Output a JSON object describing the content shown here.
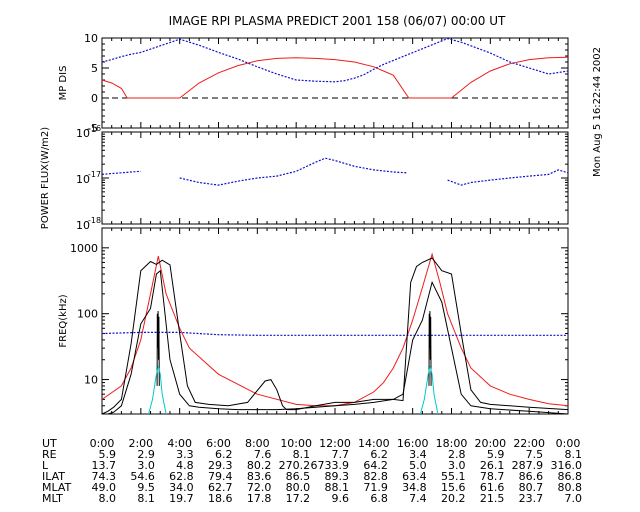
{
  "title": "IMAGE  RPI PLASMA PREDICT 2001 158 (06/07) 00:00 UT",
  "timestamp": "Mon Aug  5 16:22:44 2002",
  "colors": {
    "orbit_model": "#ee1c1c",
    "measured": "#1010cc",
    "spectrum": "#000000",
    "core": "#00c8c8"
  },
  "chart_data": [
    {
      "type": "line",
      "ylabel": "MP DIS",
      "ylim": [
        -5,
        10
      ],
      "yticks": [
        "10",
        "5",
        "0",
        "-5"
      ],
      "xlim": [
        0,
        24
      ],
      "reference_line": {
        "y": 0,
        "style": "dashed"
      },
      "series": [
        {
          "color": "red",
          "x": [
            0,
            0.5,
            1,
            1.3,
            4,
            5,
            6,
            7,
            8,
            9,
            10,
            11,
            12,
            13,
            14,
            15,
            15.8,
            18,
            19,
            20,
            21,
            22,
            23,
            24
          ],
          "y": [
            3,
            2.5,
            1.6,
            0,
            0,
            2.5,
            4.2,
            5.4,
            6.2,
            6.6,
            6.7,
            6.6,
            6.4,
            6,
            5.2,
            3.8,
            0,
            0,
            2.6,
            4.5,
            5.7,
            6.4,
            6.7,
            6.8
          ]
        },
        {
          "color": "blue",
          "x": [
            0,
            0.5,
            1,
            1.5,
            2,
            4,
            5,
            6,
            7,
            8,
            9,
            10,
            10.5,
            11,
            12,
            12.5,
            13,
            13.5,
            14,
            14.5,
            17.8,
            18.5,
            19,
            20,
            21,
            22,
            23,
            24
          ],
          "y": [
            6,
            6.4,
            6.9,
            7.3,
            7.6,
            9.8,
            8.8,
            7.6,
            6.5,
            5.2,
            4,
            3,
            2.9,
            2.8,
            2.7,
            2.9,
            3.3,
            3.9,
            4.8,
            5.6,
            9.9,
            9.3,
            8.7,
            7.5,
            6,
            5,
            4,
            4.5
          ]
        }
      ]
    },
    {
      "type": "line",
      "ylabel": "POWER FLUX(W/m2)",
      "log_y": true,
      "ylim": [
        1e-18,
        1e-16
      ],
      "yticks": [
        {
          "base": "10",
          "exp": "-16"
        },
        {
          "base": "10",
          "exp": "-17"
        },
        {
          "base": "10",
          "exp": "-18"
        }
      ],
      "series": [
        {
          "color": "blue",
          "x": [
            0,
            0.5,
            1,
            1.5,
            2
          ],
          "y": [
            1.2e-17,
            1.25e-17,
            1.3e-17,
            1.35e-17,
            1.4e-17
          ]
        },
        {
          "color": "blue",
          "x": [
            4,
            5,
            6,
            7,
            8,
            9,
            10,
            11,
            11.5,
            12,
            13,
            14,
            15,
            15.7
          ],
          "y": [
            1e-17,
            8e-18,
            7e-18,
            8.5e-18,
            1e-17,
            1.1e-17,
            1.4e-17,
            2.2e-17,
            2.7e-17,
            2.4e-17,
            1.8e-17,
            1.5e-17,
            1.35e-17,
            1.3e-17
          ]
        },
        {
          "color": "blue",
          "x": [
            17.8,
            18.5,
            19,
            20,
            21,
            22,
            23,
            23.5,
            24
          ],
          "y": [
            9e-18,
            7e-18,
            8e-18,
            9e-18,
            1e-17,
            1.1e-17,
            1.2e-17,
            1.5e-17,
            1.3e-17
          ]
        }
      ]
    },
    {
      "type": "line",
      "ylabel": "FREQ(kHz)",
      "log_y": true,
      "ylim": [
        3,
        2000
      ],
      "yticks": [
        "1000",
        "100",
        "10"
      ],
      "series": [
        {
          "color": "red",
          "x": [
            0,
            1,
            1.5,
            2,
            2.5,
            2.9,
            3.3,
            4,
            4.5,
            6,
            8,
            10,
            11,
            12,
            13,
            14,
            14.5,
            15,
            15.5,
            16,
            16.5,
            17,
            17.4,
            17.8,
            18.5,
            19,
            20,
            21,
            22,
            23,
            24
          ],
          "y": [
            5,
            8,
            15,
            40,
            200,
            750,
            200,
            60,
            30,
            12,
            6,
            4.2,
            4,
            4,
            4.5,
            6.5,
            9,
            15,
            30,
            80,
            250,
            800,
            300,
            100,
            30,
            15,
            8,
            6,
            5,
            4.3,
            4
          ]
        },
        {
          "color": "blue",
          "x": [
            0,
            2,
            4,
            6,
            8,
            10,
            12,
            14,
            16,
            18,
            20,
            22,
            24
          ],
          "y": [
            50,
            52,
            52,
            48,
            47,
            47,
            47,
            47,
            47,
            47,
            47,
            47,
            47
          ]
        },
        {
          "color": "black",
          "x": [
            0,
            0.3,
            0.6,
            1,
            1.5,
            2,
            2.5,
            2.8,
            3.1,
            3.5,
            4,
            4.4,
            4.8,
            5.5,
            6.5,
            7.5,
            8.4,
            8.7,
            9,
            9.3,
            9.5,
            10,
            11,
            12,
            13,
            14,
            15,
            15.5,
            15.9,
            16.2,
            16.5,
            17,
            17.5,
            18,
            18.5,
            19,
            19.5,
            20,
            22,
            24
          ],
          "y": [
            3,
            3.3,
            3.8,
            5,
            35,
            450,
            620,
            560,
            650,
            550,
            50,
            8,
            4.5,
            4.2,
            4,
            4.5,
            9.5,
            10,
            7,
            4,
            3.5,
            3.5,
            4,
            4.5,
            4.5,
            5,
            5,
            4.8,
            300,
            520,
            600,
            700,
            450,
            400,
            50,
            7,
            4.5,
            4.2,
            3.8,
            3.5
          ]
        },
        {
          "color": "black",
          "x": [
            0,
            0.3,
            0.6,
            1,
            1.5,
            2,
            2.5,
            2.8,
            3,
            3.5,
            4,
            4.5,
            5,
            6,
            7,
            8,
            9,
            10,
            11,
            12,
            13,
            14,
            15,
            15.5,
            16,
            16.5,
            17,
            17.5,
            18,
            18.5,
            19,
            20,
            22,
            24
          ],
          "y": [
            3,
            3,
            3.2,
            4,
            12,
            70,
            120,
            400,
            450,
            20,
            6,
            4,
            3.8,
            3.6,
            3.5,
            3.5,
            3.5,
            3.6,
            3.8,
            4,
            4.2,
            4.5,
            5,
            6,
            40,
            80,
            300,
            150,
            30,
            6,
            4,
            3.6,
            3.3,
            3
          ]
        },
        {
          "color": "black",
          "x": [
            2.84,
            2.85,
            2.87,
            2.89,
            2.91,
            2.93,
            2.95
          ],
          "y": [
            8,
            100,
            30,
            110,
            20,
            90,
            8
          ]
        },
        {
          "color": "black",
          "x": [
            16.84,
            16.85,
            16.87,
            16.89,
            16.91,
            16.93,
            16.95
          ],
          "y": [
            8,
            100,
            30,
            110,
            20,
            90,
            8
          ]
        },
        {
          "color": "cyan",
          "x": [
            2.4,
            2.6,
            2.8,
            2.9,
            3,
            3.1,
            3.3
          ],
          "y": [
            3,
            5,
            12,
            16,
            12,
            6,
            3
          ]
        },
        {
          "color": "cyan",
          "x": [
            16.4,
            16.6,
            16.8,
            16.9,
            17,
            17.1,
            17.3
          ],
          "y": [
            3,
            5,
            12,
            16,
            12,
            6,
            3
          ]
        }
      ]
    }
  ],
  "ephemeris": {
    "labels": [
      "UT",
      "RE",
      "L",
      "ILAT",
      "MLAT",
      "MLT"
    ],
    "columns": [
      [
        "0:00",
        "5.9",
        "13.7",
        "74.3",
        "49.0",
        "8.0"
      ],
      [
        "2:00",
        "2.9",
        "3.0",
        "54.6",
        "9.5",
        "8.1"
      ],
      [
        "4:00",
        "3.3",
        "4.8",
        "62.8",
        "34.0",
        "19.7"
      ],
      [
        "6:00",
        "6.2",
        "29.3",
        "79.4",
        "62.7",
        "18.6"
      ],
      [
        "8:00",
        "7.6",
        "80.2",
        "83.6",
        "72.0",
        "17.8"
      ],
      [
        "10:00",
        "8.1",
        "270.2",
        "86.5",
        "80.0",
        "17.2"
      ],
      [
        "12:00",
        "7.7",
        "6733.9",
        "89.3",
        "88.1",
        "9.6"
      ],
      [
        "14:00",
        "6.2",
        "64.2",
        "82.8",
        "71.9",
        "6.8"
      ],
      [
        "16:00",
        "3.4",
        "5.0",
        "63.4",
        "34.8",
        "7.4"
      ],
      [
        "18:00",
        "2.8",
        "3.0",
        "55.1",
        "15.6",
        "20.2"
      ],
      [
        "20:00",
        "5.9",
        "26.1",
        "78.7",
        "61.6",
        "21.5"
      ],
      [
        "22:00",
        "7.5",
        "287.9",
        "86.6",
        "80.7",
        "23.7"
      ],
      [
        "0:00",
        "8.1",
        "316.0",
        "86.8",
        "80.8",
        "7.0"
      ]
    ]
  }
}
